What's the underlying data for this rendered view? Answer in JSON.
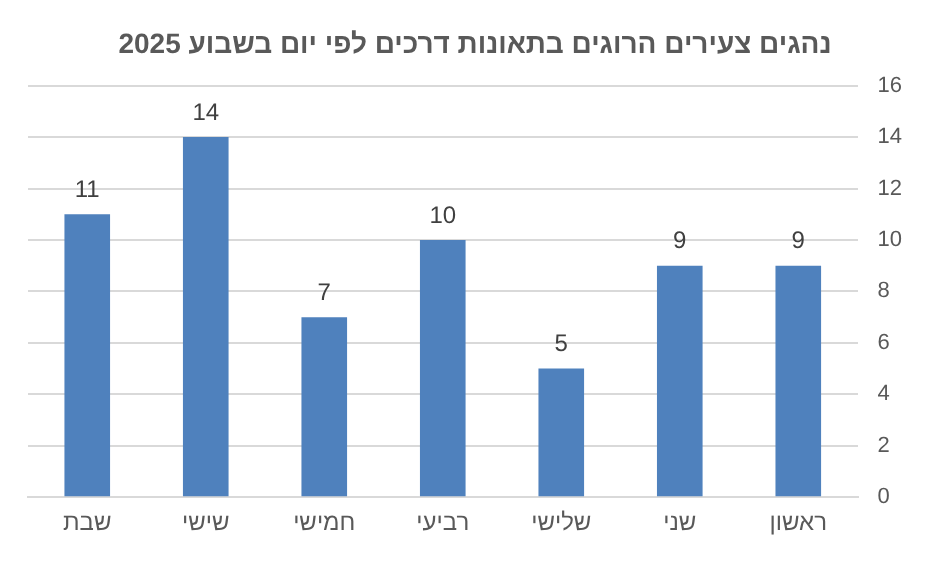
{
  "chart_data": {
    "type": "bar",
    "title": "נהגים צעירים הרוגים בתאונות דרכים לפי יום בשבוע 2025",
    "categories": [
      "שבת",
      "שישי",
      "חמישי",
      "רביעי",
      "שלישי",
      "שני",
      "ראשון"
    ],
    "values": [
      11,
      14,
      7,
      10,
      5,
      9,
      9
    ],
    "color": "#4f81bd",
    "ylim": [
      0,
      16
    ],
    "yticks": [
      0,
      2,
      4,
      6,
      8,
      10,
      12,
      14,
      16
    ],
    "grid": "y",
    "data_labels": true
  }
}
